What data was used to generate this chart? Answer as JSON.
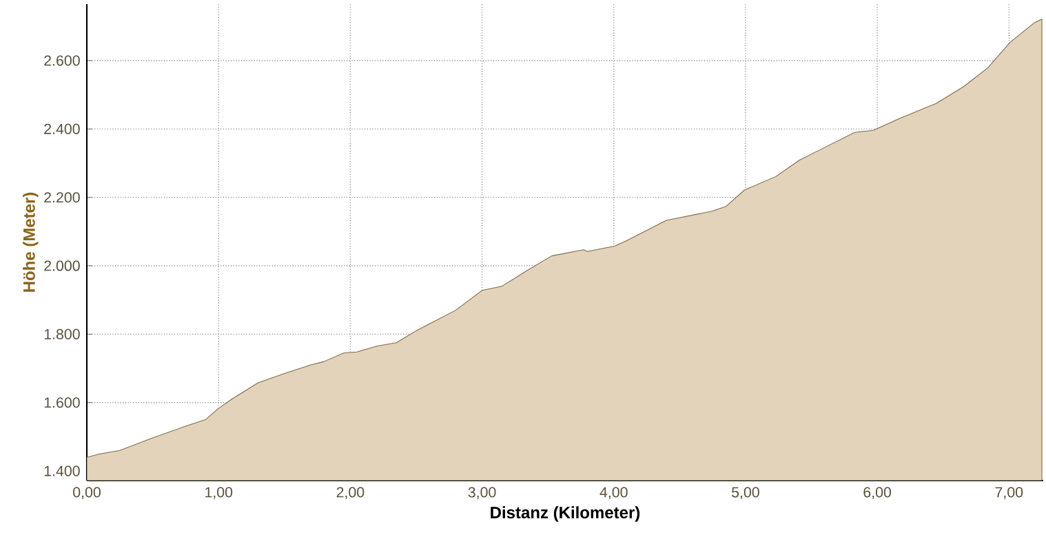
{
  "chart_data": {
    "type": "area",
    "xlabel": "Distanz (Kilometer)",
    "ylabel": "Höhe (Meter)",
    "color": "#e3d3bb",
    "grid": true,
    "x": [
      0,
      0.1,
      0.25,
      0.5,
      0.75,
      0.9,
      1.0,
      1.1,
      1.3,
      1.5,
      1.7,
      1.8,
      1.95,
      2.05,
      2.2,
      2.35,
      2.5,
      2.6,
      2.8,
      3.0,
      3.15,
      3.32,
      3.53,
      3.77,
      3.8,
      4.01,
      4.09,
      4.4,
      4.74,
      4.85,
      4.99,
      5.23,
      5.41,
      5.58,
      5.83,
      5.97,
      6.17,
      6.45,
      6.66,
      6.84,
      7.01,
      7.19,
      7.25
    ],
    "values": [
      1440,
      1450,
      1460,
      1497,
      1531,
      1550,
      1583,
      1610,
      1658,
      1685,
      1710,
      1720,
      1745,
      1748,
      1765,
      1775,
      1810,
      1830,
      1870,
      1928,
      1940,
      1981,
      2029,
      2047,
      2042,
      2058,
      2072,
      2133,
      2159,
      2173,
      2221,
      2261,
      2309,
      2342,
      2390,
      2396,
      2431,
      2475,
      2525,
      2579,
      2654,
      2710,
      2721
    ],
    "xlim": [
      0,
      7.26
    ],
    "ylim": [
      1372,
      2765
    ],
    "xticks": [
      {
        "value": 0,
        "label": "0,00"
      },
      {
        "value": 1,
        "label": "1,00"
      },
      {
        "value": 2,
        "label": "2,00"
      },
      {
        "value": 3,
        "label": "3,00"
      },
      {
        "value": 4,
        "label": "4,00"
      },
      {
        "value": 5,
        "label": "5,00"
      },
      {
        "value": 6,
        "label": "6,00"
      },
      {
        "value": 7,
        "label": "7,00"
      }
    ],
    "yticks": [
      {
        "value": 1400,
        "label": "1.400"
      },
      {
        "value": 1600,
        "label": "1.600"
      },
      {
        "value": 1800,
        "label": "1.800"
      },
      {
        "value": 2000,
        "label": "2.000"
      },
      {
        "value": 2200,
        "label": "2.200"
      },
      {
        "value": 2400,
        "label": "2.400"
      },
      {
        "value": 2600,
        "label": "2.600"
      }
    ]
  }
}
